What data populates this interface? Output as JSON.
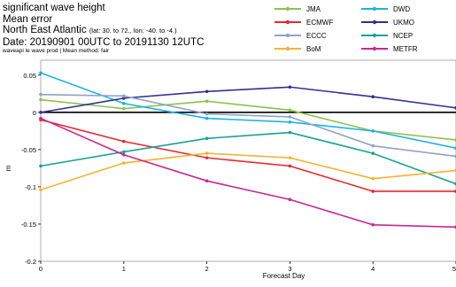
{
  "header": {
    "line1": "significant wave height",
    "line2": "Mean error",
    "line3_main": "North East Atlantic",
    "line3_detail": "(lat: 30. to 72., lon: -40. to -4.)",
    "line4": "Date: 20190901 00UTC to 20191130 12UTC",
    "line5": "waveapi le wave prod | Mean method: fair"
  },
  "chart_data": {
    "type": "line",
    "title": "significant wave height",
    "xlabel": "Forecast Day",
    "ylabel": "m",
    "x": [
      0,
      1,
      2,
      3,
      4,
      5
    ],
    "xlim": [
      0,
      5
    ],
    "ylim": [
      -0.2,
      0.07
    ],
    "xticks": [
      "0",
      "1",
      "2",
      "3",
      "4",
      "5"
    ],
    "yticks": [
      "0.05",
      "0",
      "-0.05",
      "-0.1",
      "-0.15",
      "-0.2"
    ],
    "zero_line": true,
    "grid": false,
    "legend_position": "top-right",
    "series": [
      {
        "name": "JMA",
        "color": "#8bc34a",
        "values": [
          0.017,
          0.005,
          0.015,
          0.003,
          -0.025,
          -0.037
        ]
      },
      {
        "name": "DWD",
        "color": "#17b4e6",
        "values": [
          0.053,
          0.012,
          -0.008,
          -0.013,
          -0.025,
          -0.048
        ]
      },
      {
        "name": "ECMWF",
        "color": "#e8262a",
        "values": [
          -0.01,
          -0.039,
          -0.061,
          -0.072,
          -0.106,
          -0.106
        ]
      },
      {
        "name": "UKMO",
        "color": "#2f3192",
        "values": [
          0.0,
          0.019,
          0.028,
          0.034,
          0.021,
          0.006
        ]
      },
      {
        "name": "ECCC",
        "color": "#8fa4c8",
        "values": [
          0.024,
          0.022,
          -0.002,
          -0.006,
          -0.045,
          -0.059
        ]
      },
      {
        "name": "NCEP",
        "color": "#18a394",
        "values": [
          -0.072,
          -0.053,
          -0.035,
          -0.027,
          -0.055,
          -0.096
        ]
      },
      {
        "name": "BoM",
        "color": "#f7b12e",
        "values": [
          -0.104,
          -0.068,
          -0.055,
          -0.061,
          -0.089,
          -0.078
        ]
      },
      {
        "name": "METFR",
        "color": "#cc2690",
        "values": [
          -0.008,
          -0.057,
          -0.092,
          -0.117,
          -0.151,
          -0.154
        ]
      }
    ]
  }
}
